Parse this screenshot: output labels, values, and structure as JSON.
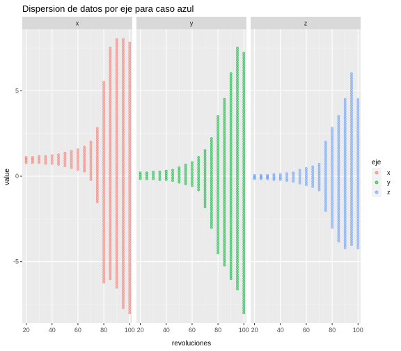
{
  "chart_data": {
    "type": "scatter",
    "title": "Dispersion de datos por eje para caso azul",
    "xlabel": "revoluciones",
    "ylabel": "value",
    "xlim": [
      17,
      102
    ],
    "ylim": [
      -8.6,
      8.6
    ],
    "x_ticks": [
      20,
      40,
      60,
      80,
      100
    ],
    "y_ticks": [
      -5,
      0,
      5
    ],
    "x_tick_labels": [
      "20",
      "40",
      "60",
      "80",
      "100"
    ],
    "y_tick_labels": [
      "-5",
      "0",
      "5"
    ],
    "grid": true,
    "legend": {
      "title": "eje",
      "position": "right"
    },
    "series": [
      {
        "name": "x",
        "panel": "x",
        "color": "#F8766D",
        "x": [
          20,
          25,
          30,
          35,
          40,
          45,
          50,
          55,
          60,
          65,
          70,
          75,
          80,
          85,
          90,
          95,
          100
        ],
        "y_min": [
          0.8,
          0.8,
          0.8,
          0.75,
          0.75,
          0.7,
          0.6,
          0.5,
          0.4,
          0.3,
          -0.2,
          -1.5,
          -6.2,
          -6.0,
          -6.5,
          -7.7,
          -8.0
        ],
        "y_max": [
          1.1,
          1.1,
          1.15,
          1.15,
          1.2,
          1.25,
          1.35,
          1.45,
          1.55,
          1.7,
          2.0,
          2.8,
          5.5,
          7.5,
          8.0,
          8.0,
          7.8
        ]
      },
      {
        "name": "y",
        "panel": "y",
        "color": "#00BA38",
        "x": [
          20,
          25,
          30,
          35,
          40,
          45,
          50,
          55,
          60,
          65,
          70,
          75,
          80,
          85,
          90,
          95,
          100
        ],
        "y_min": [
          -0.15,
          -0.15,
          -0.15,
          -0.2,
          -0.2,
          -0.25,
          -0.35,
          -0.45,
          -0.55,
          -0.8,
          -1.8,
          -3.0,
          -4.5,
          -5.2,
          -6.0,
          -6.6,
          -8.0
        ],
        "y_max": [
          0.2,
          0.2,
          0.25,
          0.25,
          0.3,
          0.35,
          0.5,
          0.65,
          0.8,
          1.1,
          1.5,
          2.2,
          3.5,
          4.5,
          6.0,
          7.5,
          7.2
        ]
      },
      {
        "name": "z",
        "panel": "z",
        "color": "#619CFF",
        "x": [
          20,
          25,
          30,
          35,
          40,
          45,
          50,
          55,
          60,
          65,
          70,
          75,
          80,
          85,
          90,
          95,
          100
        ],
        "y_min": [
          -0.15,
          -0.15,
          -0.15,
          -0.2,
          -0.2,
          -0.25,
          -0.3,
          -0.4,
          -0.5,
          -0.6,
          -0.8,
          -2.0,
          -3.0,
          -3.8,
          -4.2,
          -4.0,
          -4.2
        ],
        "y_max": [
          0.05,
          0.05,
          0.05,
          0.1,
          0.1,
          0.15,
          0.2,
          0.35,
          0.45,
          0.55,
          0.7,
          2.0,
          2.8,
          3.5,
          4.5,
          6.0,
          4.5
        ]
      }
    ],
    "panels": [
      "x",
      "y",
      "z"
    ]
  }
}
